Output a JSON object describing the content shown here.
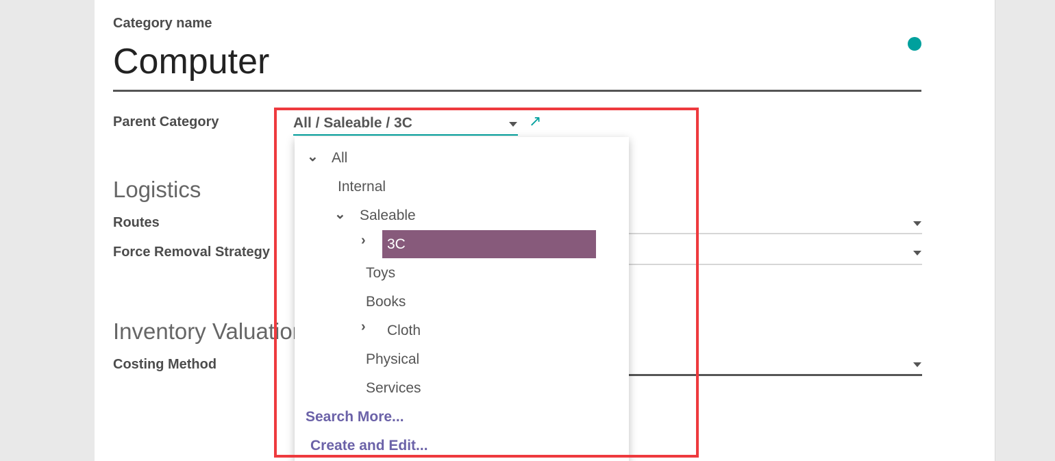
{
  "form": {
    "name_label": "Category name",
    "name_value": "Computer",
    "parent_label": "Parent Category",
    "parent_value": "All / Saleable / 3C",
    "logistics_title": "Logistics",
    "routes_label": "Routes",
    "removal_label": "Force Removal Strategy",
    "valuation_title": "Inventory Valuation",
    "costing_label": "Costing Method"
  },
  "dropdown": {
    "items": [
      {
        "label": "All",
        "expanded": true
      },
      {
        "label": "Internal"
      },
      {
        "label": "Saleable",
        "expanded": true
      },
      {
        "label": "3C",
        "collapsed": true,
        "selected": true
      },
      {
        "label": "Toys"
      },
      {
        "label": "Books"
      },
      {
        "label": "Cloth",
        "collapsed": true
      },
      {
        "label": "Physical"
      },
      {
        "label": "Services"
      }
    ],
    "search_more": "Search More...",
    "create_edit": "Create and Edit..."
  },
  "colors": {
    "accent": "#00a09d",
    "selected": "#875a7b",
    "highlight": "#ee3a3e",
    "link": "#6b62a8"
  }
}
